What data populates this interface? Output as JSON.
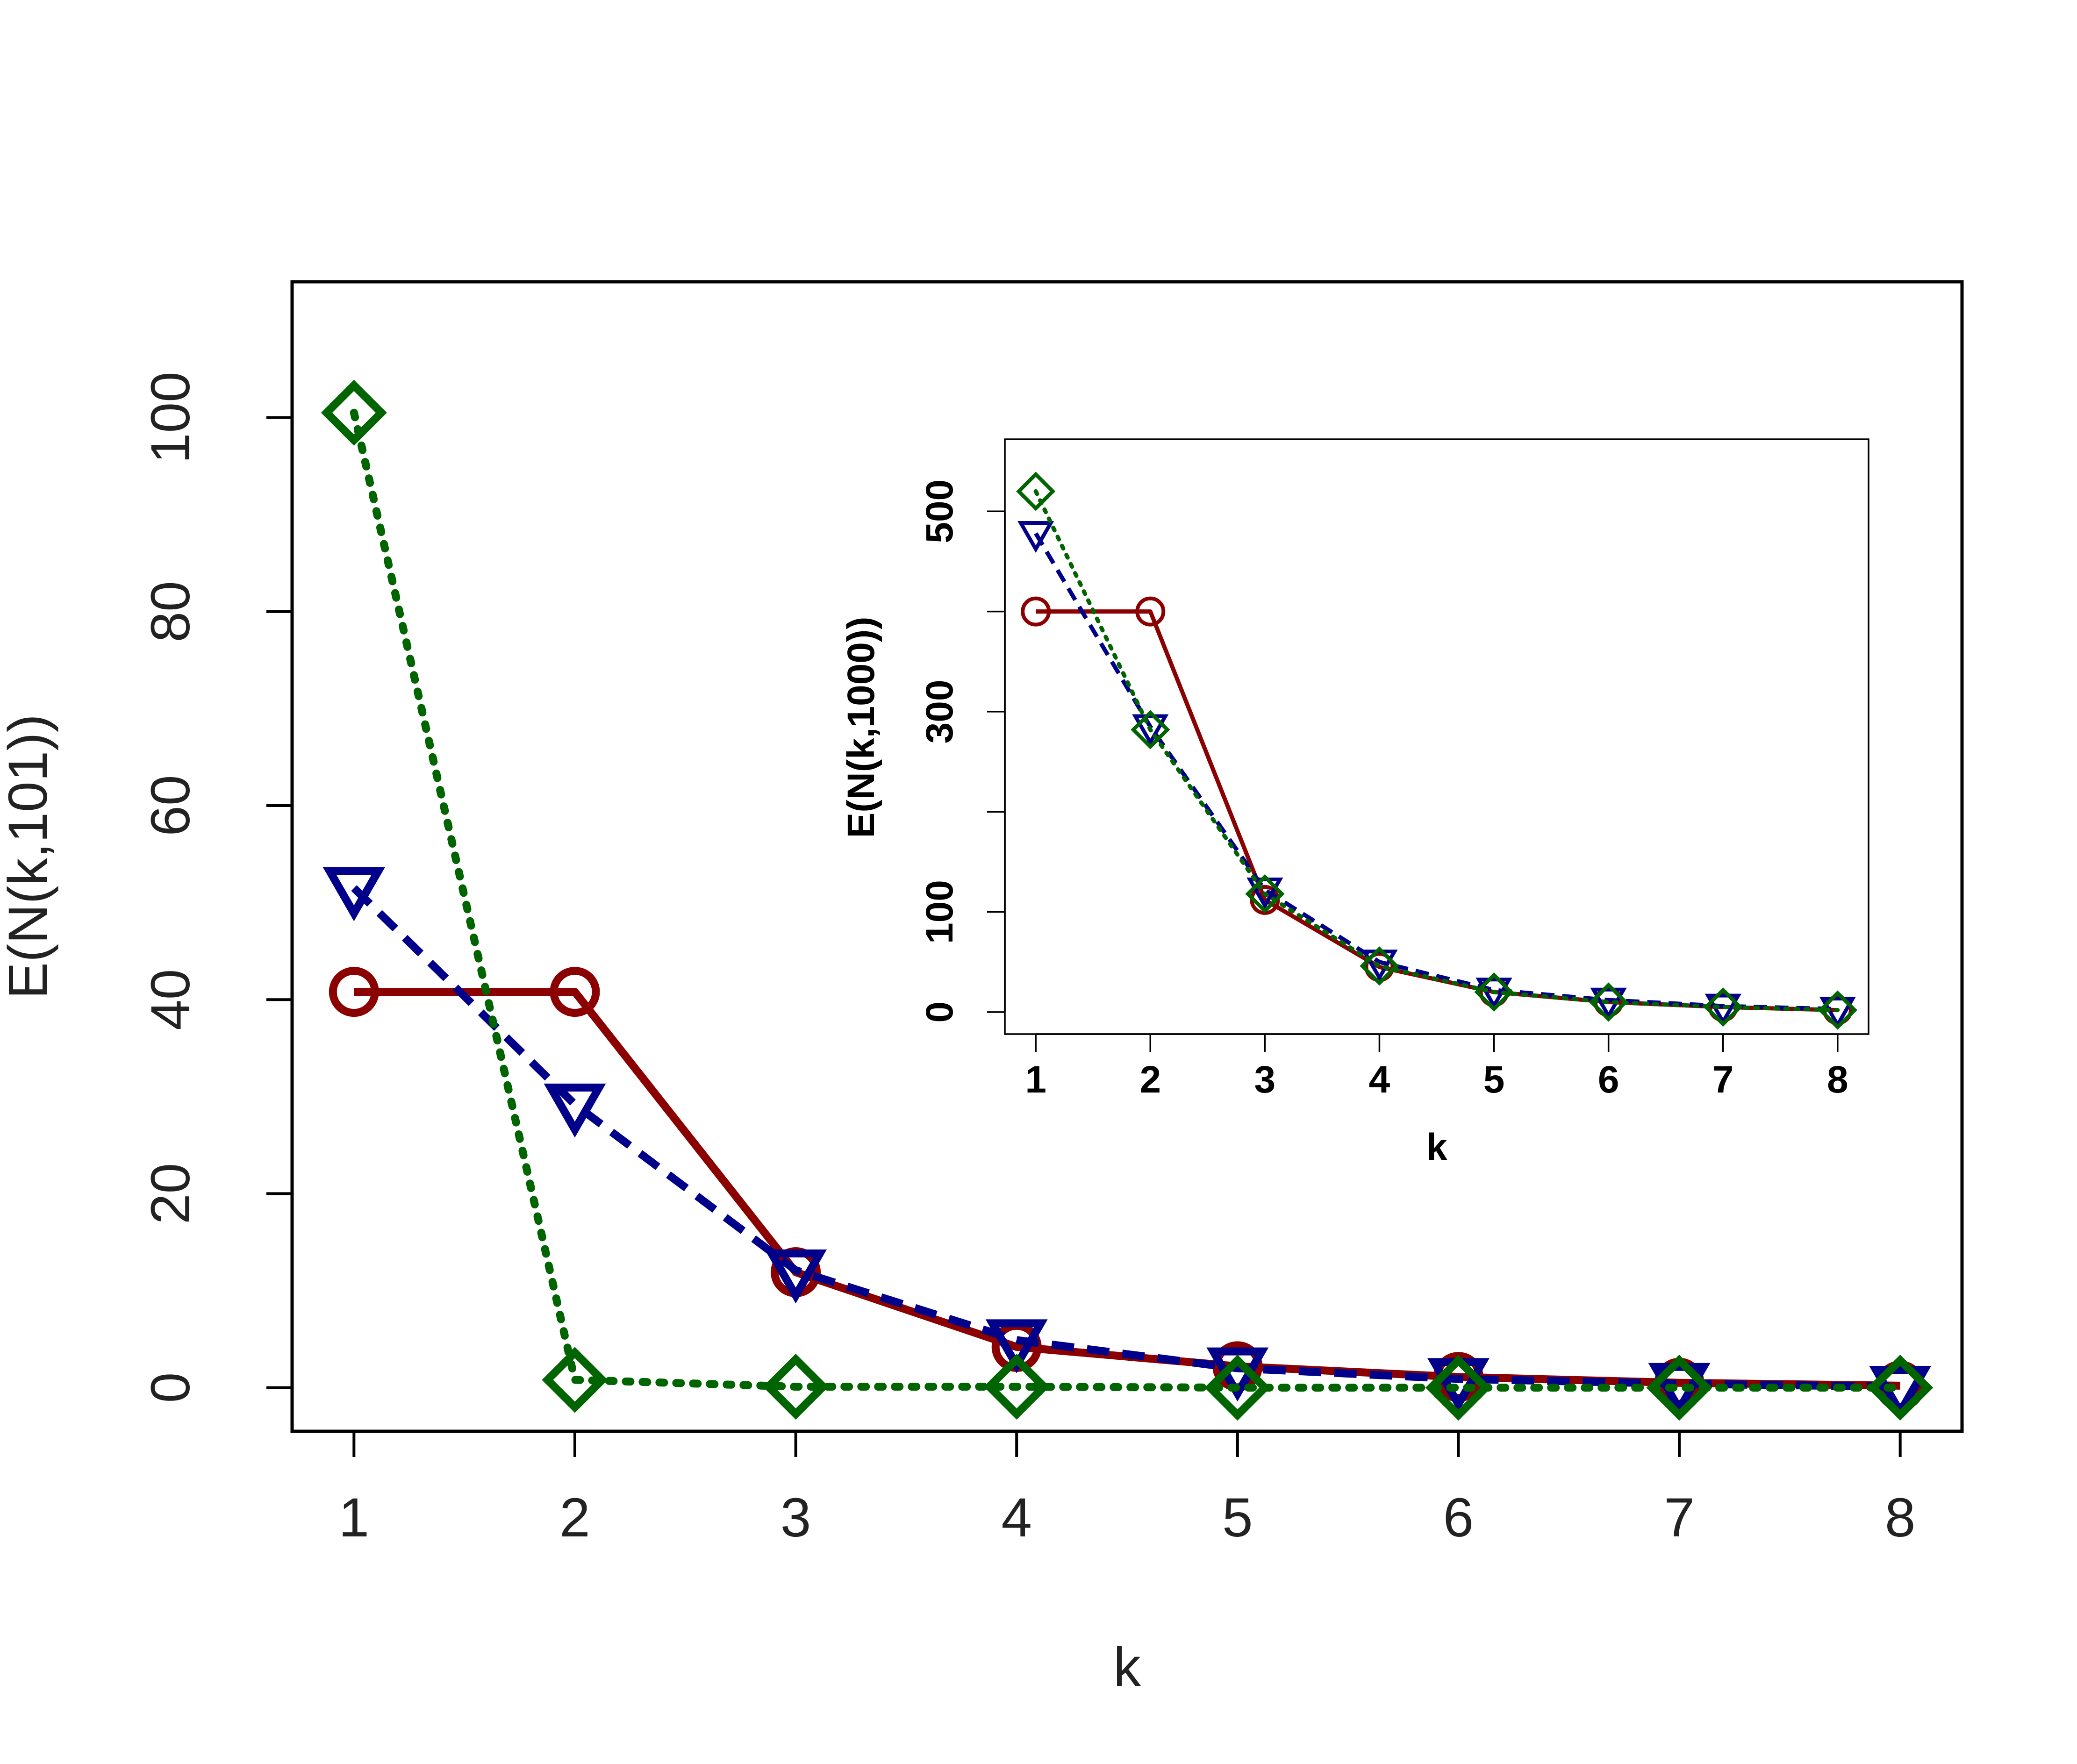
{
  "chart_data": [
    {
      "type": "line",
      "xlabel": "k",
      "ylabel": "E(N(k,101))",
      "x": [
        1,
        2,
        3,
        4,
        5,
        6,
        7,
        8
      ],
      "xlim": [
        0.72,
        8.28
      ],
      "ylim": [
        -4.5,
        114
      ],
      "yticks": [
        0,
        20,
        40,
        60,
        80,
        100
      ],
      "grid": false,
      "series": [
        {
          "color": "#8b0000",
          "line_style": "solid",
          "marker": "circle",
          "values": [
            40.8,
            40.8,
            11.9,
            4.2,
            2.2,
            1.1,
            0.5,
            0.2
          ]
        },
        {
          "color": "#00008b",
          "line_style": "dashed",
          "marker": "triangle-down",
          "values": [
            51.5,
            29.2,
            12.1,
            4.9,
            2.0,
            0.9,
            0.4,
            0.1
          ]
        },
        {
          "color": "#006400",
          "line_style": "dotted",
          "marker": "diamond",
          "values": [
            100.5,
            0.8,
            0.1,
            0.1,
            0.0,
            0.0,
            0.0,
            0.0
          ]
        }
      ]
    },
    {
      "type": "line",
      "xlabel": "k",
      "ylabel": "E(N(k,1000))",
      "x": [
        1,
        2,
        3,
        4,
        5,
        6,
        7,
        8
      ],
      "xlim": [
        0.73,
        8.27
      ],
      "ylim": [
        -22,
        572
      ],
      "yticks": [
        0,
        100,
        200,
        300,
        400,
        500
      ],
      "yticklabels_shown": [
        "0",
        "100",
        "300",
        "500"
      ],
      "grid": false,
      "series": [
        {
          "color": "#8b0000",
          "line_style": "solid",
          "marker": "circle",
          "values": [
            400,
            400,
            112,
            45,
            20,
            10,
            5,
            2
          ]
        },
        {
          "color": "#00008b",
          "line_style": "dashed",
          "marker": "triangle-down",
          "values": [
            478,
            285,
            122,
            50,
            22,
            12,
            6,
            3
          ]
        },
        {
          "color": "#006400",
          "line_style": "dotted",
          "marker": "diamond",
          "values": [
            520,
            282,
            118,
            46,
            20,
            10,
            5,
            2
          ]
        }
      ]
    }
  ]
}
